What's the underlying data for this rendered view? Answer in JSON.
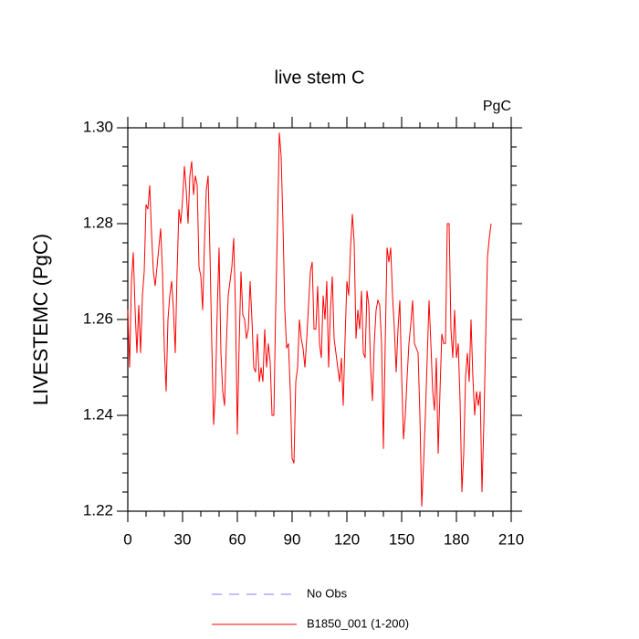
{
  "chart_data": {
    "type": "line",
    "title": "live stem C",
    "subtitle": "PgC",
    "ylabel": "LIVESTEMC  (PgC)",
    "x": [
      0,
      1,
      2,
      3,
      4,
      5,
      6,
      7,
      8,
      9,
      10,
      11,
      12,
      13,
      14,
      15,
      16,
      17,
      18,
      19,
      20,
      21,
      22,
      23,
      24,
      25,
      26,
      27,
      28,
      29,
      30,
      31,
      32,
      33,
      34,
      35,
      36,
      37,
      38,
      39,
      40,
      41,
      42,
      43,
      44,
      45,
      46,
      47,
      48,
      49,
      50,
      51,
      52,
      53,
      54,
      55,
      56,
      57,
      58,
      59,
      60,
      61,
      62,
      63,
      64,
      65,
      66,
      67,
      68,
      69,
      70,
      71,
      72,
      73,
      74,
      75,
      76,
      77,
      78,
      79,
      80,
      81,
      82,
      83,
      84,
      85,
      86,
      87,
      88,
      89,
      90,
      91,
      92,
      93,
      94,
      95,
      96,
      97,
      98,
      99,
      100,
      101,
      102,
      103,
      104,
      105,
      106,
      107,
      108,
      109,
      110,
      111,
      112,
      113,
      114,
      115,
      116,
      117,
      118,
      119,
      120,
      121,
      122,
      123,
      124,
      125,
      126,
      127,
      128,
      129,
      130,
      131,
      132,
      133,
      134,
      135,
      136,
      137,
      138,
      139,
      140,
      141,
      142,
      143,
      144,
      145,
      146,
      147,
      148,
      149,
      150,
      151,
      152,
      153,
      154,
      155,
      156,
      157,
      158,
      159,
      160,
      161,
      162,
      163,
      164,
      165,
      166,
      167,
      168,
      169,
      170,
      171,
      172,
      173,
      174,
      175,
      176,
      177,
      178,
      179,
      180,
      181,
      182,
      183,
      184,
      185,
      186,
      187,
      188,
      189,
      190,
      191,
      192,
      193,
      194,
      195,
      196,
      197,
      198,
      199
    ],
    "series": [
      {
        "name": "B1850_001 (1-200)",
        "color": "#ff0000",
        "values": [
          1.262,
          1.25,
          1.268,
          1.274,
          1.262,
          1.253,
          1.263,
          1.253,
          1.265,
          1.27,
          1.284,
          1.283,
          1.288,
          1.278,
          1.27,
          1.267,
          1.271,
          1.275,
          1.279,
          1.27,
          1.254,
          1.245,
          1.26,
          1.265,
          1.268,
          1.262,
          1.253,
          1.27,
          1.283,
          1.28,
          1.285,
          1.292,
          1.287,
          1.28,
          1.29,
          1.293,
          1.286,
          1.29,
          1.288,
          1.271,
          1.269,
          1.262,
          1.276,
          1.287,
          1.29,
          1.274,
          1.255,
          1.238,
          1.245,
          1.262,
          1.275,
          1.253,
          1.245,
          1.242,
          1.255,
          1.265,
          1.268,
          1.271,
          1.277,
          1.262,
          1.236,
          1.255,
          1.27,
          1.261,
          1.26,
          1.256,
          1.258,
          1.268,
          1.26,
          1.25,
          1.249,
          1.257,
          1.247,
          1.25,
          1.247,
          1.258,
          1.25,
          1.255,
          1.251,
          1.24,
          1.24,
          1.262,
          1.28,
          1.299,
          1.294,
          1.28,
          1.262,
          1.254,
          1.255,
          1.245,
          1.231,
          1.23,
          1.247,
          1.25,
          1.26,
          1.256,
          1.254,
          1.25,
          1.256,
          1.263,
          1.27,
          1.272,
          1.258,
          1.258,
          1.267,
          1.255,
          1.252,
          1.265,
          1.26,
          1.268,
          1.25,
          1.262,
          1.269,
          1.256,
          1.253,
          1.25,
          1.247,
          1.252,
          1.242,
          1.256,
          1.268,
          1.265,
          1.275,
          1.282,
          1.276,
          1.256,
          1.262,
          1.258,
          1.266,
          1.253,
          1.252,
          1.266,
          1.263,
          1.25,
          1.243,
          1.255,
          1.262,
          1.264,
          1.263,
          1.255,
          1.233,
          1.255,
          1.275,
          1.272,
          1.275,
          1.265,
          1.258,
          1.249,
          1.258,
          1.264,
          1.248,
          1.235,
          1.24,
          1.248,
          1.255,
          1.259,
          1.264,
          1.255,
          1.254,
          1.253,
          1.24,
          1.221,
          1.23,
          1.24,
          1.252,
          1.264,
          1.255,
          1.245,
          1.241,
          1.252,
          1.232,
          1.245,
          1.257,
          1.255,
          1.255,
          1.28,
          1.28,
          1.258,
          1.252,
          1.262,
          1.252,
          1.255,
          1.243,
          1.224,
          1.232,
          1.248,
          1.253,
          1.247,
          1.26,
          1.248,
          1.24,
          1.245,
          1.242,
          1.245,
          1.224,
          1.238,
          1.256,
          1.273,
          1.277,
          1.28
        ]
      }
    ],
    "legend_only": [
      {
        "name": "No Obs",
        "color": "#8080ff",
        "style": "dashed"
      }
    ],
    "xlim": [
      0,
      210
    ],
    "xticks": [
      0,
      30,
      60,
      90,
      120,
      150,
      180,
      210
    ],
    "xminor_ticks": [
      10,
      20,
      40,
      50,
      70,
      80,
      100,
      110,
      130,
      140,
      160,
      170,
      190,
      200
    ],
    "ylim": [
      1.22,
      1.3
    ],
    "yticks": [
      {
        "value": 1.22,
        "label": "1.22"
      },
      1.24,
      1.26,
      1.28,
      {
        "value": 1.3,
        "label": "1.30"
      }
    ],
    "yminor_ticks": [
      1.224,
      1.228,
      1.232,
      1.236,
      1.244,
      1.248,
      1.252,
      1.256,
      1.264,
      1.268,
      1.272,
      1.276,
      1.284,
      1.288,
      1.292,
      1.296
    ]
  }
}
